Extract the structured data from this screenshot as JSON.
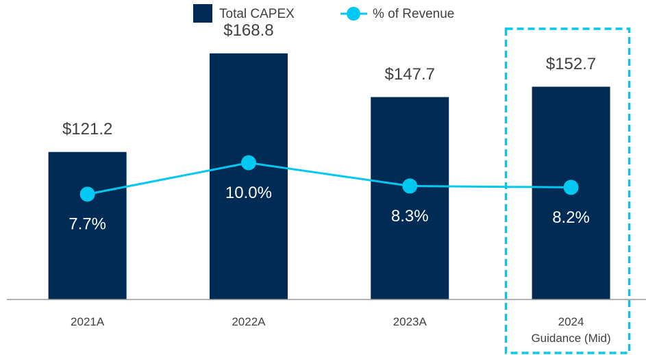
{
  "chart_data": {
    "type": "bar",
    "categories": [
      "2021A",
      "2022A",
      "2023A",
      "2024\nGuidance (Mid)"
    ],
    "series": [
      {
        "name": "Total CAPEX",
        "type": "bar",
        "color": "#002b55",
        "values": [
          121.2,
          168.8,
          147.7,
          152.7
        ],
        "value_labels": [
          "$121.2",
          "$168.8",
          "$147.7",
          "$152.7"
        ]
      },
      {
        "name": "% of Revenue",
        "type": "line",
        "axis": "y2",
        "color": "#00c8f0",
        "values": [
          7.7,
          10.0,
          8.3,
          8.2
        ],
        "value_labels": [
          "7.7%",
          "10.0%",
          "8.3%",
          "8.2%"
        ]
      }
    ],
    "ylim": [
      50,
      180
    ],
    "y2lim": [
      0,
      19.7
    ],
    "highlight_color": "#00c8f0"
  }
}
